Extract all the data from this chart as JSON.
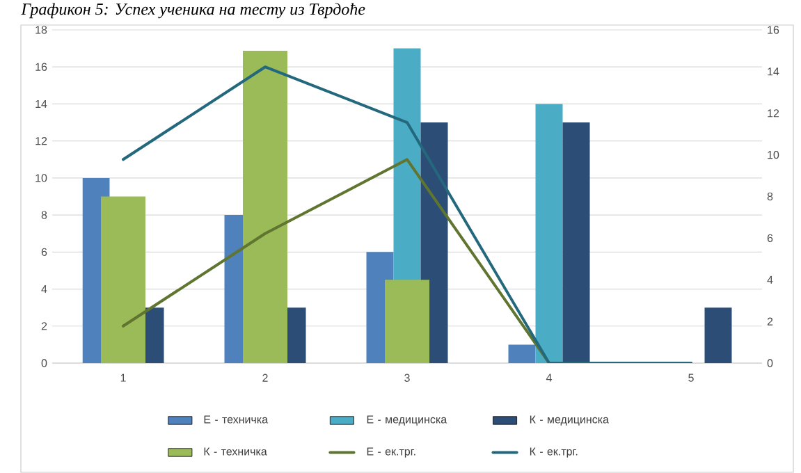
{
  "chart_data": {
    "type": "bar",
    "title": "Графикон 5: Успех ученика на тесту из Тврдоће",
    "categories": [
      "1",
      "2",
      "3",
      "4",
      "5"
    ],
    "series": [
      {
        "name": "Е - техничка",
        "color": "#4f81bd",
        "values": [
          10,
          8,
          6,
          1,
          0
        ]
      },
      {
        "name": "Е - медицинска",
        "color": "#4bacc6",
        "values": [
          0,
          0,
          17,
          14,
          0
        ]
      },
      {
        "name": "К - медицинска",
        "color": "#2c4d75",
        "values": [
          3,
          3,
          13,
          13,
          3
        ]
      },
      {
        "name": "К - техничка",
        "color": "#9bbb59",
        "values": [
          8,
          15,
          4,
          0,
          0
        ],
        "axis": "y2"
      },
      {
        "name": "Е - ек.трг.",
        "color": "#5f7530",
        "type": "line",
        "values": [
          2,
          7,
          11,
          0,
          0
        ]
      },
      {
        "name": "К - ек.трг.",
        "color": "#23687c",
        "type": "line",
        "values": [
          11,
          16,
          13,
          0,
          0
        ]
      }
    ],
    "ylim": [
      0,
      18
    ],
    "yticks": [
      0,
      2,
      4,
      6,
      8,
      10,
      12,
      14,
      16,
      18
    ],
    "y2lim": [
      0,
      16
    ],
    "y2ticks": [
      0,
      2,
      4,
      6,
      8,
      10,
      12,
      14,
      16
    ],
    "grid": "y",
    "legend": "bottom"
  }
}
